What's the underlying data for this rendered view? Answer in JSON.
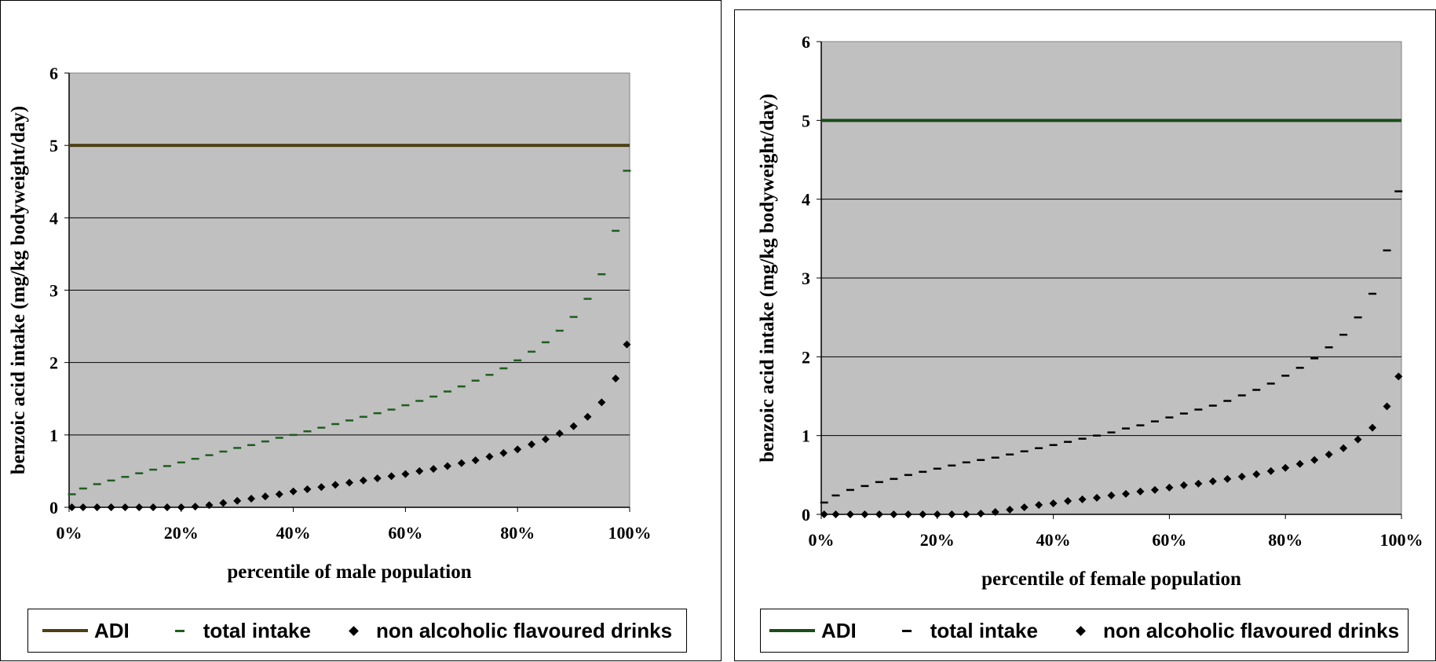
{
  "chart_data": [
    {
      "type": "scatter",
      "xlabel": "percentile of male population",
      "ylabel": "benzoic acid intake (mg/kg bodyweight/day)",
      "xlim": [
        0,
        100
      ],
      "ylim": [
        0,
        6
      ],
      "x_ticks": [
        "0%",
        "20%",
        "40%",
        "60%",
        "80%",
        "100%"
      ],
      "y_ticks": [
        "0",
        "1",
        "2",
        "3",
        "4",
        "5",
        "6"
      ],
      "grid": "horizontal",
      "legend_position": "bottom",
      "colors": {
        "adi": "#4d4015",
        "total": "#1f5d1f",
        "drinks": "#000000",
        "plot_bg": "#c0c0c0"
      },
      "series": [
        {
          "name": "ADI",
          "kind": "line",
          "x": [
            0,
            100
          ],
          "values": [
            5,
            5
          ]
        },
        {
          "name": "total intake",
          "kind": "dash",
          "x": [
            0.5,
            2.5,
            5,
            7.5,
            10,
            12.5,
            15,
            17.5,
            20,
            22.5,
            25,
            27.5,
            30,
            32.5,
            35,
            37.5,
            40,
            42.5,
            45,
            47.5,
            50,
            52.5,
            55,
            57.5,
            60,
            62.5,
            65,
            67.5,
            70,
            72.5,
            75,
            77.5,
            80,
            82.5,
            85,
            87.5,
            90,
            92.5,
            95,
            97.5,
            99.5
          ],
          "values": [
            0.18,
            0.26,
            0.32,
            0.37,
            0.42,
            0.47,
            0.52,
            0.57,
            0.62,
            0.67,
            0.72,
            0.77,
            0.82,
            0.86,
            0.91,
            0.96,
            1.0,
            1.05,
            1.1,
            1.15,
            1.2,
            1.25,
            1.3,
            1.35,
            1.41,
            1.47,
            1.53,
            1.6,
            1.67,
            1.75,
            1.83,
            1.92,
            2.03,
            2.15,
            2.28,
            2.44,
            2.63,
            2.88,
            3.22,
            3.82,
            4.65
          ]
        },
        {
          "name": "non alcoholic flavoured drinks",
          "kind": "diamond",
          "x": [
            0.5,
            2.5,
            5,
            7.5,
            10,
            12.5,
            15,
            17.5,
            20,
            22.5,
            25,
            27.5,
            30,
            32.5,
            35,
            37.5,
            40,
            42.5,
            45,
            47.5,
            50,
            52.5,
            55,
            57.5,
            60,
            62.5,
            65,
            67.5,
            70,
            72.5,
            75,
            77.5,
            80,
            82.5,
            85,
            87.5,
            90,
            92.5,
            95,
            97.5,
            99.5
          ],
          "values": [
            0.0,
            0.0,
            0.0,
            0.0,
            0.0,
            0.0,
            0.0,
            0.0,
            0.0,
            0.01,
            0.03,
            0.06,
            0.09,
            0.12,
            0.15,
            0.18,
            0.22,
            0.25,
            0.28,
            0.31,
            0.34,
            0.37,
            0.4,
            0.43,
            0.46,
            0.5,
            0.53,
            0.57,
            0.61,
            0.65,
            0.7,
            0.75,
            0.8,
            0.87,
            0.94,
            1.02,
            1.12,
            1.25,
            1.45,
            1.78,
            2.25
          ]
        }
      ]
    },
    {
      "type": "scatter",
      "xlabel": "percentile of female population",
      "ylabel": "benzoic acid intake (mg/kg bodyweight/day)",
      "xlim": [
        0,
        100
      ],
      "ylim": [
        0,
        6
      ],
      "x_ticks": [
        "0%",
        "20%",
        "40%",
        "60%",
        "80%",
        "100%"
      ],
      "y_ticks": [
        "0",
        "1",
        "2",
        "3",
        "4",
        "5",
        "6"
      ],
      "grid": "horizontal",
      "legend_position": "bottom",
      "colors": {
        "adi": "#1a4d1a",
        "total": "#000000",
        "drinks": "#000000",
        "plot_bg": "#c0c0c0"
      },
      "series": [
        {
          "name": "ADI",
          "kind": "line",
          "x": [
            0,
            100
          ],
          "values": [
            5,
            5
          ]
        },
        {
          "name": "total intake",
          "kind": "dash",
          "x": [
            0.5,
            2.5,
            5,
            7.5,
            10,
            12.5,
            15,
            17.5,
            20,
            22.5,
            25,
            27.5,
            30,
            32.5,
            35,
            37.5,
            40,
            42.5,
            45,
            47.5,
            50,
            52.5,
            55,
            57.5,
            60,
            62.5,
            65,
            67.5,
            70,
            72.5,
            75,
            77.5,
            80,
            82.5,
            85,
            87.5,
            90,
            92.5,
            95,
            97.5,
            99.5
          ],
          "values": [
            0.15,
            0.24,
            0.31,
            0.36,
            0.41,
            0.45,
            0.5,
            0.54,
            0.58,
            0.62,
            0.66,
            0.69,
            0.72,
            0.76,
            0.8,
            0.84,
            0.88,
            0.92,
            0.96,
            1.0,
            1.04,
            1.09,
            1.13,
            1.18,
            1.23,
            1.28,
            1.33,
            1.38,
            1.44,
            1.51,
            1.58,
            1.66,
            1.76,
            1.86,
            1.98,
            2.12,
            2.28,
            2.5,
            2.8,
            3.35,
            4.1
          ]
        },
        {
          "name": "non alcoholic flavoured drinks",
          "kind": "diamond",
          "x": [
            0.5,
            2.5,
            5,
            7.5,
            10,
            12.5,
            15,
            17.5,
            20,
            22.5,
            25,
            27.5,
            30,
            32.5,
            35,
            37.5,
            40,
            42.5,
            45,
            47.5,
            50,
            52.5,
            55,
            57.5,
            60,
            62.5,
            65,
            67.5,
            70,
            72.5,
            75,
            77.5,
            80,
            82.5,
            85,
            87.5,
            90,
            92.5,
            95,
            97.5,
            99.5
          ],
          "values": [
            0.0,
            0.0,
            0.0,
            0.0,
            0.0,
            0.0,
            0.0,
            0.0,
            0.0,
            0.0,
            0.0,
            0.01,
            0.03,
            0.06,
            0.09,
            0.12,
            0.14,
            0.17,
            0.19,
            0.21,
            0.24,
            0.26,
            0.29,
            0.31,
            0.34,
            0.37,
            0.39,
            0.42,
            0.45,
            0.48,
            0.51,
            0.55,
            0.59,
            0.64,
            0.69,
            0.76,
            0.84,
            0.95,
            1.1,
            1.37,
            1.75
          ]
        }
      ]
    }
  ]
}
